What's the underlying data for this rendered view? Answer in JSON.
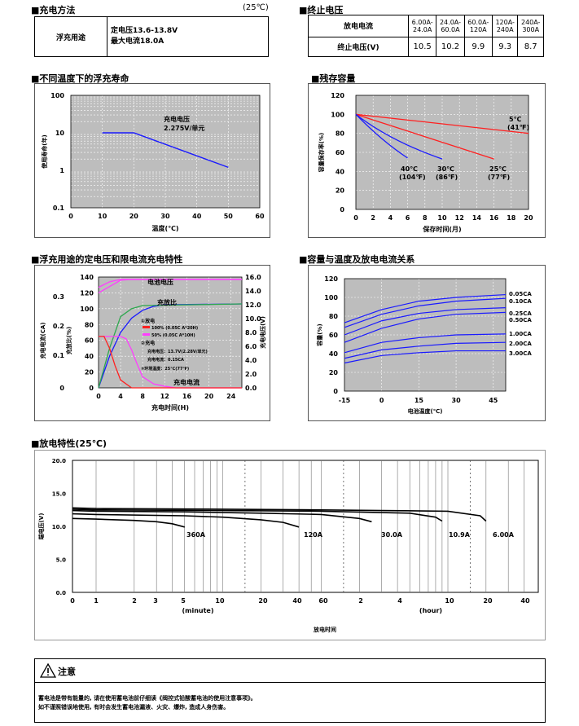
{
  "charge": {
    "title": "■充电方法",
    "temp": "(25℃)",
    "row_label": "浮充用途",
    "line1": "定电压13.6-13.8V",
    "line2": "最大电流18.0A"
  },
  "endv": {
    "title": "■终止电压",
    "row1_label": "放电电流",
    "row2_label": "终止电压(V)",
    "headers": [
      [
        "6.00A-",
        "24.0A"
      ],
      [
        "24.0A-",
        "60.0A"
      ],
      [
        "60.0A-",
        "120A"
      ],
      [
        "120A-",
        "240A"
      ],
      [
        "240A-",
        "300A"
      ]
    ],
    "values": [
      "10.5",
      "10.2",
      "9.9",
      "9.3",
      "8.7"
    ]
  },
  "float_life": {
    "title": "■不同温度下的浮充寿命",
    "ylabel": "使用寿命(年)",
    "xlabel": "温度(℃)",
    "annot1": "充电电压",
    "annot2": "2.275V/单元",
    "y_ticks": [
      "100",
      "10",
      "1",
      "0.1"
    ],
    "x_ticks": [
      "0",
      "10",
      "20",
      "30",
      "40",
      "50",
      "60"
    ],
    "chart_data": {
      "type": "line",
      "x": [
        10,
        20,
        50
      ],
      "y": [
        10,
        10,
        1.2
      ],
      "xlim": [
        0,
        60
      ],
      "ylim": [
        0.1,
        100
      ],
      "yscale": "log",
      "color": "#1a1aff",
      "grid": true
    }
  },
  "residual": {
    "title": "■残存容量",
    "ylabel": "容量保存率(%)",
    "xlabel": "保存时间(月)",
    "y_ticks": [
      "120",
      "100",
      "80",
      "60",
      "40",
      "20",
      "0"
    ],
    "x_ticks": [
      "0",
      "2",
      "4",
      "6",
      "8",
      "10",
      "12",
      "14",
      "16",
      "18",
      "20"
    ],
    "labels": [
      {
        "t1": "5℃",
        "t2": "(41℉)"
      },
      {
        "t1": "25℃",
        "t2": "(77℉)"
      },
      {
        "t1": "30℃",
        "t2": "(86℉)"
      },
      {
        "t1": "40℃",
        "t2": "(104℉)"
      }
    ],
    "chart_data": {
      "type": "line",
      "xlim": [
        0,
        20
      ],
      "ylim": [
        0,
        120
      ],
      "series": [
        {
          "x": [
            0,
            20
          ],
          "y": [
            100,
            80
          ],
          "color": "#ff2020"
        },
        {
          "x": [
            0,
            16
          ],
          "y": [
            100,
            53
          ],
          "color": "#ff2020"
        },
        {
          "x": [
            0,
            4,
            10
          ],
          "y": [
            100,
            72,
            53
          ],
          "color": "#1a1aff"
        },
        {
          "x": [
            0,
            3,
            6
          ],
          "y": [
            100,
            72,
            54
          ],
          "color": "#1a1aff"
        }
      ]
    }
  },
  "float_char": {
    "title": "■浮充用途的定电压和限电流充电特性",
    "ylabel_left1": "充电电流(CA)",
    "ylabel_left2": "充放比(%)",
    "ylabel_right": "充电电压(V)",
    "xlabel": "充电时间(H)",
    "lbl_voltage": "电池电压",
    "lbl_ratio": "充放比",
    "lbl_current": "充电电流",
    "legend1": "①放电",
    "legend1a": "100% (0.05C A*20H)",
    "legend1b": "50% (0.05C A*10H)",
    "legend2": "②充电",
    "legend2a": "充电电压：13.7V(2.28V/单元)",
    "legend2b": "充电电流：0.15CA",
    "legend3": "③环境温度：25℃(77℉)",
    "ca_ticks": [
      "0.3",
      "0.2",
      "0.1",
      "0"
    ],
    "pct_ticks": [
      "140",
      "120",
      "100",
      "80",
      "60",
      "40",
      "20",
      "0"
    ],
    "v_ticks": [
      "16.0",
      "14.0",
      "12.0",
      "10.0",
      "8.0",
      "6.0",
      "4.0",
      "2.0",
      "0.0"
    ],
    "x_ticks": [
      "0",
      "4",
      "8",
      "12",
      "16",
      "20",
      "24"
    ],
    "chart_data": {
      "type": "line",
      "xlim": [
        0,
        26
      ],
      "ylim": [
        0,
        140
      ],
      "series": [
        {
          "name": "电池电压",
          "x": [
            0,
            2,
            4,
            6,
            8,
            26
          ],
          "y": [
            120,
            128,
            136,
            137,
            137,
            137
          ],
          "color": "#ff3dff"
        },
        {
          "name": "电池电压",
          "x": [
            0,
            2,
            4,
            6,
            26
          ],
          "y": [
            127,
            134,
            137,
            137,
            137
          ],
          "color": "#ff3dff"
        },
        {
          "name": "充放比",
          "x": [
            0,
            2,
            4,
            6,
            8,
            10,
            12,
            26
          ],
          "y": [
            0,
            40,
            70,
            88,
            98,
            103,
            105,
            106
          ],
          "color": "#1a1aff"
        },
        {
          "name": "充放比",
          "x": [
            0,
            2,
            4,
            6,
            8,
            26
          ],
          "y": [
            0,
            50,
            90,
            100,
            104,
            106
          ],
          "color": "#2ea84e"
        },
        {
          "name": "充电电流",
          "x": [
            0,
            4,
            5,
            6,
            7,
            8,
            10,
            12,
            14,
            26
          ],
          "y": [
            65,
            65,
            62,
            48,
            30,
            14,
            5,
            2,
            0,
            0
          ],
          "color": "#ff3dff"
        },
        {
          "name": "充电电流",
          "x": [
            0,
            1,
            2,
            3,
            4,
            6,
            26
          ],
          "y": [
            65,
            65,
            50,
            28,
            10,
            0,
            0
          ],
          "color": "#ff2020"
        }
      ]
    }
  },
  "cap_temp": {
    "title": "■容量与温度及放电电流关系",
    "ylabel": "容量(%)",
    "xlabel": "电池温度(℃)",
    "y_ticks": [
      "120",
      "100",
      "80",
      "60",
      "40",
      "20",
      "0"
    ],
    "x_ticks": [
      "-15",
      "0",
      "15",
      "30",
      "45"
    ],
    "legend": [
      "0.05CA",
      "0.10CA",
      "0.25CA",
      "0.50CA",
      "1.00CA",
      "2.00CA",
      "3.00CA"
    ],
    "chart_data": {
      "type": "line",
      "xlim": [
        -15,
        50
      ],
      "ylim": [
        0,
        120
      ],
      "series": [
        {
          "name": "0.05CA",
          "x": [
            -15,
            0,
            15,
            30,
            50
          ],
          "y": [
            73,
            87,
            96,
            100,
            103
          ],
          "color": "#1a1aff"
        },
        {
          "name": "0.10CA",
          "x": [
            -15,
            0,
            15,
            30,
            50
          ],
          "y": [
            68,
            82,
            91,
            96,
            99
          ],
          "color": "#1a1aff"
        },
        {
          "name": "0.25CA",
          "x": [
            -15,
            0,
            15,
            30,
            50
          ],
          "y": [
            60,
            75,
            83,
            87,
            89
          ],
          "color": "#1a1aff"
        },
        {
          "name": "0.50CA",
          "x": [
            -15,
            0,
            15,
            30,
            50
          ],
          "y": [
            52,
            67,
            77,
            82,
            84
          ],
          "color": "#1a1aff"
        },
        {
          "name": "1.00CA",
          "x": [
            -15,
            0,
            15,
            30,
            50
          ],
          "y": [
            41,
            52,
            57,
            60,
            61
          ],
          "color": "#1a1aff"
        },
        {
          "name": "2.00CA",
          "x": [
            -15,
            0,
            15,
            30,
            50
          ],
          "y": [
            35,
            44,
            48,
            51,
            52
          ],
          "color": "#1a1aff"
        },
        {
          "name": "3.00CA",
          "x": [
            -15,
            0,
            15,
            30,
            50
          ],
          "y": [
            30,
            38,
            41,
            43,
            43
          ],
          "color": "#1a1aff"
        }
      ]
    }
  },
  "discharge": {
    "title": "■放电特性(25℃)",
    "ylabel": "端电压(V)",
    "xlabel": "放电时间",
    "unit_min": "(minute)",
    "unit_hour": "(hour)",
    "y_ticks": [
      "20.0",
      "15.0",
      "10.0",
      "5.0",
      "0.0"
    ],
    "x_ticks_min": [
      "0",
      "1",
      "2",
      "3",
      "5",
      "10",
      "20",
      "40",
      "60"
    ],
    "x_ticks_hour": [
      "2",
      "4",
      "10",
      "20",
      "40"
    ],
    "curve_labels": [
      "360A",
      "120A",
      "30.0A",
      "10.9A",
      "6.00A"
    ],
    "chart_data": {
      "type": "line",
      "ylim": [
        0,
        20
      ],
      "series": [
        {
          "name": "360A",
          "x_min": [
            0,
            1,
            2,
            3,
            4,
            5
          ],
          "y": [
            11.2,
            11.1,
            10.9,
            10.7,
            10.4,
            9.9
          ]
        },
        {
          "name": "120A",
          "x_min": [
            0,
            1,
            5,
            10,
            20,
            30,
            40
          ],
          "y": [
            11.9,
            11.8,
            11.6,
            11.4,
            11.0,
            10.6,
            9.9
          ]
        },
        {
          "name": "30.0A",
          "x_min": [
            0,
            1,
            5,
            20,
            60,
            120,
            150
          ],
          "y": [
            12.4,
            12.3,
            12.2,
            12.0,
            11.8,
            11.2,
            10.7
          ]
        },
        {
          "name": "10.9A",
          "x_min": [
            0,
            1,
            10,
            60,
            300,
            480,
            540
          ],
          "y": [
            12.6,
            12.5,
            12.4,
            12.3,
            12.0,
            11.4,
            10.8
          ]
        },
        {
          "name": "6.00A",
          "x_min": [
            0,
            1,
            10,
            60,
            600,
            1080,
            1200
          ],
          "y": [
            12.8,
            12.7,
            12.6,
            12.5,
            12.3,
            11.6,
            10.8
          ]
        }
      ]
    }
  },
  "notice": {
    "title": "注意",
    "line1": "蓄电池是带有能量的, 请在使用蓄电池前仔细读《阀控式铅酸蓄电池的使用注意事项》。",
    "line2": "如不谨照错误地使用, 有时会发生蓄电池漏液、火灾、爆炸, 造成人身伤害。"
  }
}
